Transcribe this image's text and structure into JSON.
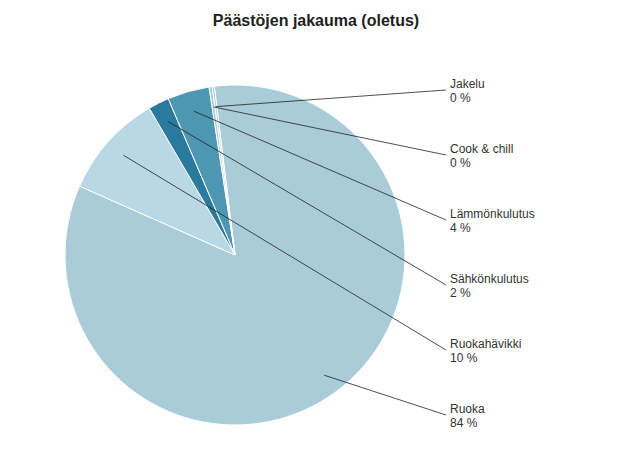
{
  "chart_data": {
    "type": "pie",
    "title": "Päästöjen jakauma (oletus)",
    "categories": [
      "Ruoka",
      "Ruokahävikki",
      "Sähkönkulutus",
      "Lämmönkulutus",
      "Cook & chill",
      "Jakelu"
    ],
    "values": [
      84,
      10,
      2,
      4,
      0.3,
      0.2
    ],
    "value_labels": [
      "84 %",
      "10 %",
      "2 %",
      "4 %",
      "0 %",
      "0 %"
    ],
    "colors": [
      "#aaccd8",
      "#b8d8e5",
      "#2a7a9e",
      "#4d97b2",
      "#aaccd8",
      "#aaccd8"
    ],
    "data_labels": true
  }
}
